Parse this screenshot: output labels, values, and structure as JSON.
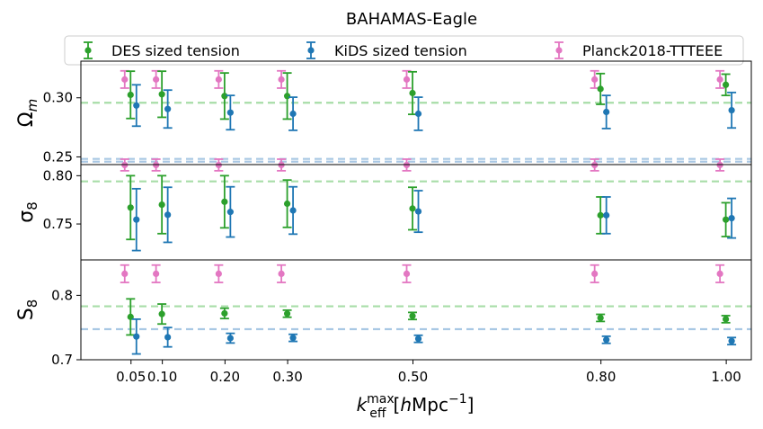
{
  "chart_data": {
    "type": "scatter",
    "title": "BAHAMAS-Eagle",
    "xlabel": "k_eff^max [hMpc^-1]",
    "x_ticks": [
      "0.05",
      "0.10",
      "0.20",
      "0.30",
      "0.50",
      "0.80",
      "1.00"
    ],
    "xlim": [
      -0.03,
      1.04
    ],
    "legend": [
      {
        "key": "des",
        "label": "DES sized tension",
        "color": "#2ca02c"
      },
      {
        "key": "kids",
        "label": "KiDS sized tension",
        "color": "#1f77b4"
      },
      {
        "key": "planck",
        "label": "Planck2018-TTTEEE",
        "color": "#e377c2"
      }
    ],
    "panels": [
      {
        "ylabel_base": "Ω",
        "ylabel_sub": "m",
        "ylim": [
          0.2435,
          0.331
        ],
        "yticks": [
          0.25,
          0.3
        ],
        "ytick_labels": [
          "0.25",
          "0.30"
        ],
        "hlines": [
          {
            "series": "des",
            "value": 0.2958
          },
          {
            "series": "kids",
            "value": 0.2483
          },
          {
            "series": "kids",
            "value": 0.246
          }
        ],
        "series": {
          "planck": {
            "x": [
              0.05,
              0.1,
              0.2,
              0.3,
              0.5,
              0.8,
              1.0
            ],
            "y": [
              0.3155,
              0.3155,
              0.3155,
              0.3155,
              0.3155,
              0.3155,
              0.3155
            ],
            "err": [
              0.0073,
              0.0073,
              0.0073,
              0.0073,
              0.0073,
              0.0073,
              0.0073
            ]
          },
          "des": {
            "x": [
              0.05,
              0.1,
              0.2,
              0.3,
              0.5,
              0.8,
              1.0
            ],
            "y": [
              0.3025,
              0.303,
              0.3015,
              0.3015,
              0.304,
              0.3075,
              0.311
            ],
            "err": [
              0.02,
              0.0195,
              0.0195,
              0.0195,
              0.018,
              0.013,
              0.009
            ]
          },
          "kids": {
            "x": [
              0.05,
              0.1,
              0.2,
              0.3,
              0.5,
              0.8,
              1.0
            ],
            "y": [
              0.2935,
              0.2905,
              0.2875,
              0.2865,
              0.2865,
              0.288,
              0.2895
            ],
            "err": [
              0.0175,
              0.016,
              0.0145,
              0.014,
              0.014,
              0.014,
              0.015
            ]
          }
        }
      },
      {
        "ylabel_base": "σ",
        "ylabel_sub": "8",
        "ylim": [
          0.7128,
          0.8115
        ],
        "yticks": [
          0.75,
          0.8
        ],
        "ytick_labels": [
          "0.75",
          "0.80"
        ],
        "hlines": [
          {
            "series": "des",
            "value": 0.7941
          }
        ],
        "series": {
          "planck": {
            "x": [
              0.05,
              0.1,
              0.2,
              0.3,
              0.5,
              0.8,
              1.0
            ],
            "y": [
              0.8111,
              0.8111,
              0.8111,
              0.8111,
              0.8111,
              0.8111,
              0.8111
            ],
            "err": [
              0.006,
              0.006,
              0.006,
              0.006,
              0.006,
              0.006,
              0.006
            ]
          },
          "des": {
            "x": [
              0.05,
              0.1,
              0.2,
              0.3,
              0.5,
              0.8,
              1.0
            ],
            "y": [
              0.767,
              0.77,
              0.773,
              0.771,
              0.766,
              0.759,
              0.7545
            ],
            "err": [
              0.033,
              0.03,
              0.027,
              0.0245,
              0.022,
              0.019,
              0.0175
            ]
          },
          "kids": {
            "x": [
              0.05,
              0.1,
              0.2,
              0.3,
              0.5,
              0.8,
              1.0
            ],
            "y": [
              0.7545,
              0.7595,
              0.7625,
              0.764,
              0.763,
              0.759,
              0.756
            ],
            "err": [
              0.032,
              0.0285,
              0.026,
              0.0245,
              0.0215,
              0.019,
              0.0205
            ]
          }
        }
      },
      {
        "ylabel_base": "S",
        "ylabel_sub": "8",
        "ylim": [
          0.7,
          0.855
        ],
        "yticks": [
          0.7,
          0.8
        ],
        "ytick_labels": [
          "0.7",
          "0.8"
        ],
        "hlines": [
          {
            "series": "des",
            "value": 0.783
          },
          {
            "series": "kids",
            "value": 0.7475
          }
        ],
        "series": {
          "planck": {
            "x": [
              0.05,
              0.1,
              0.2,
              0.3,
              0.5,
              0.8,
              1.0
            ],
            "y": [
              0.8335,
              0.8335,
              0.8335,
              0.8335,
              0.8335,
              0.8335,
              0.8335
            ],
            "err": [
              0.0135,
              0.0135,
              0.0135,
              0.0135,
              0.0135,
              0.0135,
              0.0135
            ]
          },
          "des": {
            "x": [
              0.05,
              0.1,
              0.2,
              0.3,
              0.5,
              0.8,
              1.0
            ],
            "y": [
              0.7665,
              0.771,
              0.772,
              0.7715,
              0.768,
              0.765,
              0.763
            ],
            "err": [
              0.028,
              0.0155,
              0.008,
              0.0055,
              0.0055,
              0.0055,
              0.0055
            ]
          },
          "kids": {
            "x": [
              0.05,
              0.1,
              0.2,
              0.3,
              0.5,
              0.8,
              1.0
            ],
            "y": [
              0.736,
              0.735,
              0.7335,
              0.734,
              0.7325,
              0.731,
              0.729
            ],
            "err": [
              0.027,
              0.015,
              0.0075,
              0.0055,
              0.0055,
              0.0055,
              0.0055
            ]
          }
        }
      }
    ]
  }
}
